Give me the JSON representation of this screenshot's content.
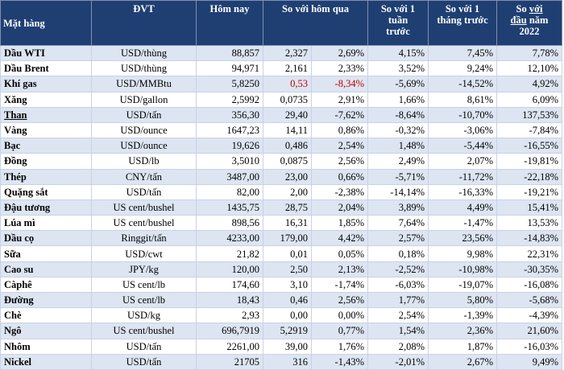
{
  "headers": {
    "item": "Mặt hàng",
    "unit": "ĐVT",
    "today": "Hôm nay",
    "vs_yesterday": "So với hôm qua",
    "vs_week": "So với 1\ntuần\ntrước",
    "vs_month": "So với 1\ntháng trước",
    "vs_year_prefix": "So ",
    "vs_year_underlined": "với",
    "vs_year_mid": "\n",
    "vs_year_underlined2": "đầu",
    "vs_year_suffix": " năm\n2022"
  },
  "rows": [
    {
      "name": "Dầu WTI",
      "unit": "USD/thùng",
      "price": "88,857",
      "chg": "2,327",
      "chg_pct": "2,69%",
      "week": "4,15%",
      "month": "7,45%",
      "ytd": "7,78%"
    },
    {
      "name": "Dầu Brent",
      "unit": "USD/thùng",
      "price": "94,971",
      "chg": "2,161",
      "chg_pct": "2,33%",
      "week": "3,52%",
      "month": "9,24%",
      "ytd": "12,10%"
    },
    {
      "name": "Khí gas",
      "unit": "USD/MMBtu",
      "price": "5,8250",
      "chg": "0,53",
      "chg_pct": "-8,34%",
      "week": "-5,69%",
      "month": "-14,52%",
      "ytd": "4,92%",
      "highlight_change": true
    },
    {
      "name": "Xăng",
      "unit": "USD/gallon",
      "price": "2,5992",
      "chg": "0,0735",
      "chg_pct": "2,91%",
      "week": "1,66%",
      "month": "8,61%",
      "ytd": "6,09%"
    },
    {
      "name": "Than",
      "unit": "USD/tấn",
      "price": "356,30",
      "chg": "29,40",
      "chg_pct": "-7,62%",
      "week": "-8,64%",
      "month": "-10,70%",
      "ytd": "137,53%",
      "underline": true
    },
    {
      "name": "Vàng",
      "unit": "USD/ounce",
      "price": "1647,23",
      "chg": "14,11",
      "chg_pct": "0,86%",
      "week": "-0,32%",
      "month": "-3,06%",
      "ytd": "-7,84%"
    },
    {
      "name": "Bạc",
      "unit": "USD/ounce",
      "price": "19,626",
      "chg": "0,486",
      "chg_pct": "2,54%",
      "week": "1,48%",
      "month": "-5,44%",
      "ytd": "-16,55%"
    },
    {
      "name": "Đồng",
      "unit": "USD/lb",
      "price": "3,5010",
      "chg": "0,0875",
      "chg_pct": "2,56%",
      "week": "2,49%",
      "month": "2,07%",
      "ytd": "-19,81%"
    },
    {
      "name": "Thép",
      "unit": "CNY/tấn",
      "price": "3487,00",
      "chg": "23,00",
      "chg_pct": "0,66%",
      "week": "-5,71%",
      "month": "-11,72%",
      "ytd": "-22,18%"
    },
    {
      "name": "Quặng sắt",
      "unit": "USD/tấn",
      "price": "82,00",
      "chg": "2,00",
      "chg_pct": "-2,38%",
      "week": "-14,14%",
      "month": "-16,33%",
      "ytd": "-19,21%"
    },
    {
      "name": "Đậu tương",
      "unit": "US cent/bushel",
      "price": "1435,75",
      "chg": "28,75",
      "chg_pct": "2,04%",
      "week": "3,89%",
      "month": "4,49%",
      "ytd": "15,41%"
    },
    {
      "name": "Lúa mì",
      "unit": "US cent/bushel",
      "price": "898,56",
      "chg": "16,31",
      "chg_pct": "1,85%",
      "week": "7,64%",
      "month": "-1,47%",
      "ytd": "13,53%"
    },
    {
      "name": "Dầu cọ",
      "unit": "Ringgit/tấn",
      "price": "4233,00",
      "chg": "179,00",
      "chg_pct": "4,42%",
      "week": "2,57%",
      "month": "23,56%",
      "ytd": "-14,83%"
    },
    {
      "name": "Sữa",
      "unit": "USD/cwt",
      "price": "21,82",
      "chg": "0,01",
      "chg_pct": "0,05%",
      "week": "0,18%",
      "month": "9,98%",
      "ytd": "22,31%"
    },
    {
      "name": "Cao su",
      "unit": "JPY/kg",
      "price": "120,00",
      "chg": "2,50",
      "chg_pct": "2,13%",
      "week": "-2,52%",
      "month": "-10,98%",
      "ytd": "-30,35%"
    },
    {
      "name": "Càphê",
      "unit": "US cent/lb",
      "price": "174,60",
      "chg": "3,10",
      "chg_pct": "-1,74%",
      "week": "-6,03%",
      "month": "-19,07%",
      "ytd": "-16,08%"
    },
    {
      "name": "Đường",
      "unit": "US cent/lb",
      "price": "18,43",
      "chg": "0,46",
      "chg_pct": "2,56%",
      "week": "1,77%",
      "month": "5,80%",
      "ytd": "-5,68%"
    },
    {
      "name": "Chè",
      "unit": "USD/kg",
      "price": "2,93",
      "chg": "0,00",
      "chg_pct": "0,00%",
      "week": "2,54%",
      "month": "-1,39%",
      "ytd": "-4,39%"
    },
    {
      "name": "Ngô",
      "unit": "US cent/bushel",
      "price": "696,7919",
      "chg": "5,2919",
      "chg_pct": "0,77%",
      "week": "1,54%",
      "month": "2,36%",
      "ytd": "21,60%"
    },
    {
      "name": "Nhôm",
      "unit": "USD/tấn",
      "price": "2261,00",
      "chg": "39,00",
      "chg_pct": "1,76%",
      "week": "2,08%",
      "month": "1,87%",
      "ytd": "-16,03%"
    },
    {
      "name": "Nickel",
      "unit": "USD/tấn",
      "price": "21705",
      "chg": "316",
      "chg_pct": "-1,43%",
      "week": "-2,01%",
      "month": "2,67%",
      "ytd": "9,49%"
    }
  ],
  "colors": {
    "header_bg": "#1f3f73",
    "row_alt": "#dde5f2",
    "negative_highlight": "#c00000"
  }
}
